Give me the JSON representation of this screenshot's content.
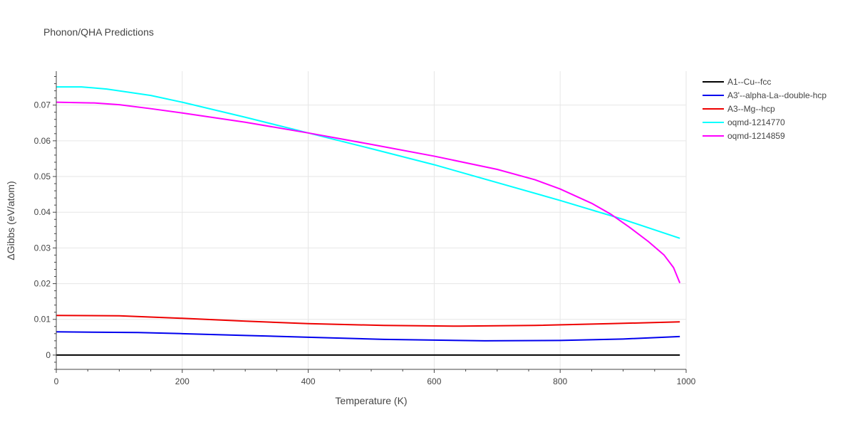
{
  "chart_data": {
    "type": "line",
    "title": "Phonon/QHA Predictions",
    "xlabel": "Temperature (K)",
    "ylabel": "ΔGibbs (eV/atom)",
    "xlim": [
      0,
      1000
    ],
    "ylim": [
      -0.004,
      0.0795
    ],
    "x_ticks": [
      0,
      200,
      400,
      600,
      800,
      1000
    ],
    "y_ticks": [
      0,
      0.01,
      0.02,
      0.03,
      0.04,
      0.05,
      0.06,
      0.07
    ],
    "y_tick_labels": [
      "0",
      "0.01",
      "0.02",
      "0.03",
      "0.04",
      "0.05",
      "0.06",
      "0.07"
    ],
    "grid": true,
    "legend_position": "top-right",
    "series": [
      {
        "name": "A1--Cu--fcc",
        "color": "#000000",
        "x": [
          0,
          100,
          200,
          300,
          400,
          500,
          600,
          700,
          800,
          900,
          990
        ],
        "y": [
          0,
          0,
          0,
          0,
          0,
          0,
          0,
          0,
          0,
          0,
          0
        ]
      },
      {
        "name": "A3'--alpha-La--double-hcp",
        "color": "#0000ee",
        "x": [
          0,
          130,
          200,
          300,
          400,
          520,
          600,
          680,
          800,
          900,
          990
        ],
        "y": [
          0.0065,
          0.0063,
          0.006,
          0.0055,
          0.005,
          0.0044,
          0.0042,
          0.004,
          0.0041,
          0.0045,
          0.0052
        ]
      },
      {
        "name": "A3--Mg--hcp",
        "color": "#ee0000",
        "x": [
          0,
          100,
          200,
          300,
          400,
          520,
          640,
          760,
          880,
          990
        ],
        "y": [
          0.0111,
          0.011,
          0.0103,
          0.0095,
          0.0088,
          0.0083,
          0.0081,
          0.0083,
          0.0088,
          0.0093
        ]
      },
      {
        "name": "oqmd-1214770",
        "color": "#00ffff",
        "x": [
          0,
          40,
          80,
          150,
          200,
          300,
          400,
          500,
          600,
          700,
          800,
          900,
          990
        ],
        "y": [
          0.0751,
          0.0751,
          0.0745,
          0.0727,
          0.0708,
          0.0666,
          0.0622,
          0.0578,
          0.0533,
          0.0483,
          0.0433,
          0.038,
          0.0327
        ]
      },
      {
        "name": "oqmd-1214859",
        "color": "#ff00ff",
        "x": [
          0,
          60,
          100,
          150,
          200,
          300,
          400,
          500,
          600,
          700,
          760,
          800,
          850,
          880,
          910,
          940,
          965,
          980,
          990
        ],
        "y": [
          0.0708,
          0.0706,
          0.0701,
          0.069,
          0.0678,
          0.0652,
          0.0622,
          0.059,
          0.0557,
          0.052,
          0.0491,
          0.0465,
          0.0425,
          0.0395,
          0.0358,
          0.0318,
          0.028,
          0.0245,
          0.0202
        ]
      }
    ]
  }
}
